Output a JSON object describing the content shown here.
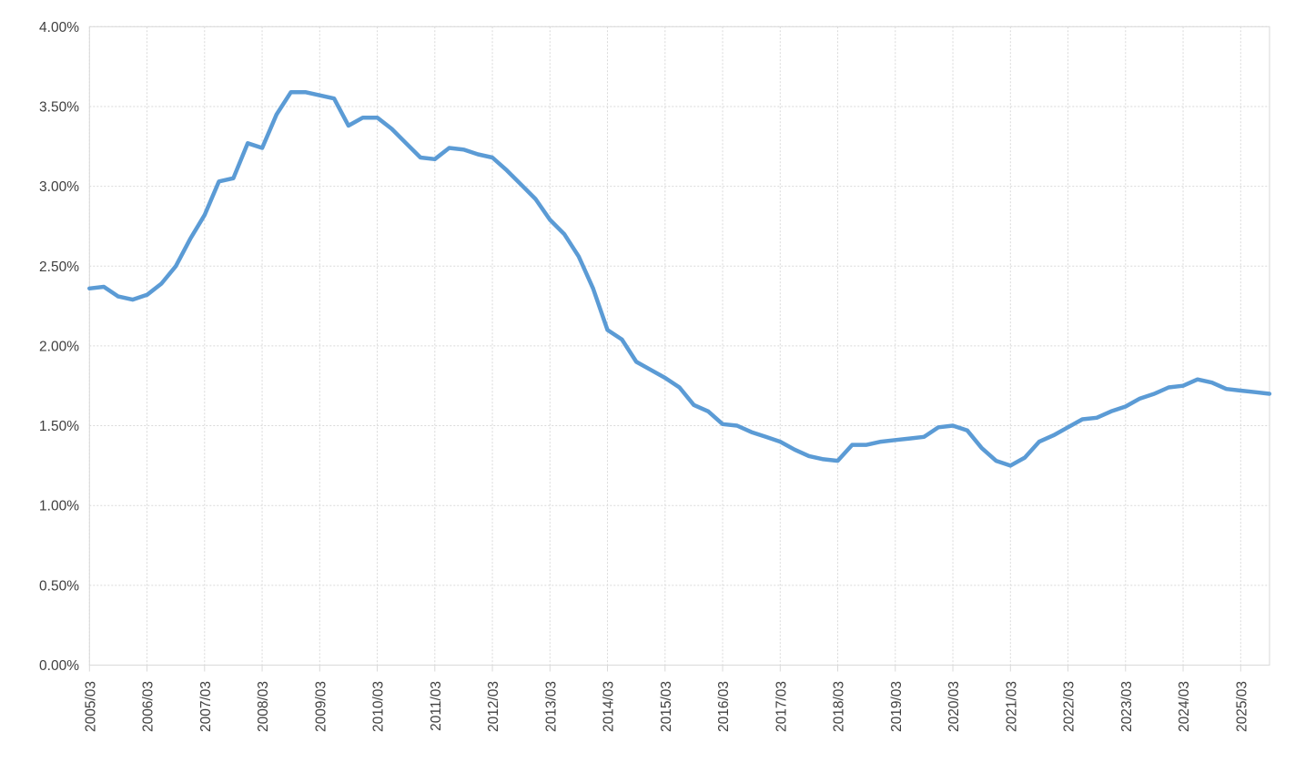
{
  "chart_data": {
    "type": "line",
    "title": "",
    "xlabel": "",
    "ylabel": "",
    "value_unit": "%",
    "ylim": [
      0,
      4
    ],
    "y_step": 0.5,
    "grid": "on",
    "legend": "none",
    "line_color": "#5B9BD5",
    "gridline_color": "#D9D9D9",
    "label_color": "#3f3f3f",
    "y_tick_labels": [
      "4.00%",
      "3.50%",
      "3.00%",
      "2.50%",
      "2.00%",
      "1.50%",
      "1.00%",
      "0.50%",
      "0.00%"
    ],
    "x_tick_labels": [
      "2005/03",
      "2006/03",
      "2007/03",
      "2008/03",
      "2009/03",
      "2010/03",
      "2011/03",
      "2012/03",
      "2013/03",
      "2014/03",
      "2015/03",
      "2016/03",
      "2017/03",
      "2018/03",
      "2019/03",
      "2020/03",
      "2021/03",
      "2022/03",
      "2023/03",
      "2024/03",
      "2025/03"
    ],
    "x": [
      "2005/03",
      "2005/06",
      "2005/09",
      "2005/12",
      "2006/03",
      "2006/06",
      "2006/09",
      "2006/12",
      "2007/03",
      "2007/06",
      "2007/09",
      "2007/12",
      "2008/03",
      "2008/06",
      "2008/09",
      "2008/12",
      "2009/03",
      "2009/06",
      "2009/09",
      "2009/12",
      "2010/03",
      "2010/06",
      "2010/09",
      "2010/12",
      "2011/03",
      "2011/06",
      "2011/09",
      "2011/12",
      "2012/03",
      "2012/06",
      "2012/09",
      "2012/12",
      "2013/03",
      "2013/06",
      "2013/09",
      "2013/12",
      "2014/03",
      "2014/06",
      "2014/09",
      "2014/12",
      "2015/03",
      "2015/06",
      "2015/09",
      "2015/12",
      "2016/03",
      "2016/06",
      "2016/09",
      "2016/12",
      "2017/03",
      "2017/06",
      "2017/09",
      "2017/12",
      "2018/03",
      "2018/06",
      "2018/09",
      "2018/12",
      "2019/03",
      "2019/06",
      "2019/09",
      "2019/12",
      "2020/03",
      "2020/06",
      "2020/09",
      "2020/12",
      "2021/03",
      "2021/06",
      "2021/09",
      "2021/12",
      "2022/03",
      "2022/06",
      "2022/09",
      "2022/12",
      "2023/03",
      "2023/06",
      "2023/09",
      "2023/12",
      "2024/03",
      "2024/06",
      "2024/09",
      "2024/12",
      "2025/03",
      "2025/06",
      "2025/09"
    ],
    "values": [
      2.36,
      2.37,
      2.31,
      2.29,
      2.32,
      2.39,
      2.5,
      2.67,
      2.82,
      3.03,
      3.05,
      3.27,
      3.24,
      3.45,
      3.59,
      3.59,
      3.57,
      3.55,
      3.38,
      3.43,
      3.43,
      3.36,
      3.27,
      3.18,
      3.17,
      3.24,
      3.23,
      3.2,
      3.18,
      3.1,
      3.01,
      2.92,
      2.79,
      2.7,
      2.56,
      2.36,
      2.1,
      2.04,
      1.9,
      1.85,
      1.8,
      1.74,
      1.63,
      1.59,
      1.51,
      1.5,
      1.46,
      1.43,
      1.4,
      1.35,
      1.31,
      1.29,
      1.28,
      1.38,
      1.38,
      1.4,
      1.41,
      1.42,
      1.43,
      1.49,
      1.5,
      1.47,
      1.36,
      1.28,
      1.25,
      1.3,
      1.4,
      1.44,
      1.49,
      1.54,
      1.55,
      1.59,
      1.62,
      1.67,
      1.7,
      1.74,
      1.75,
      1.79,
      1.77,
      1.73,
      1.72,
      1.71,
      1.7
    ]
  }
}
